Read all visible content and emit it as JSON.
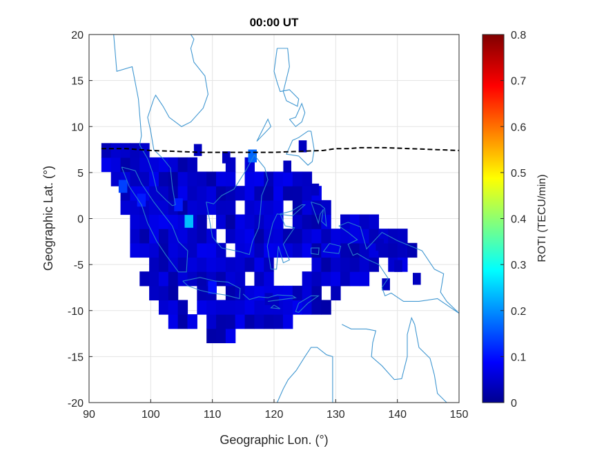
{
  "chart_data": {
    "type": "heatmap",
    "title": "00:00 UT",
    "xlabel": "Geographic Lon. (°)",
    "ylabel": "Geographic Lat. (°)",
    "xlim": [
      90,
      150
    ],
    "ylim": [
      -20,
      20
    ],
    "xticks": [
      "90",
      "100",
      "110",
      "120",
      "130",
      "140",
      "150"
    ],
    "yticks": [
      "20",
      "15",
      "10",
      "5",
      "0",
      "-5",
      "-10",
      "-15",
      "-20"
    ],
    "grid": true,
    "colorbar": {
      "label": "ROTI (TECU/min)",
      "range": [
        0,
        0.8
      ],
      "ticks": [
        "0",
        "0.1",
        "0.2",
        "0.3",
        "0.4",
        "0.5",
        "0.6",
        "0.7",
        "0.8"
      ],
      "colormap": "jet"
    },
    "magnetic_equator": {
      "style": "dashed",
      "color": "#000000",
      "points": [
        [
          92,
          7.6
        ],
        [
          96,
          7.6
        ],
        [
          100,
          7.4
        ],
        [
          104,
          7.3
        ],
        [
          108,
          7.2
        ],
        [
          112,
          7.2
        ],
        [
          116,
          7.2
        ],
        [
          120,
          7.2
        ],
        [
          124,
          7.3
        ],
        [
          128,
          7.4
        ],
        [
          130,
          7.6
        ],
        [
          132,
          7.6
        ],
        [
          134,
          7.7
        ],
        [
          138,
          7.7
        ],
        [
          142,
          7.6
        ],
        [
          146,
          7.5
        ],
        [
          150,
          7.4
        ]
      ]
    },
    "background_roti": 0.06,
    "highlight_cells": [
      {
        "lon": 116.5,
        "lat": 6.8,
        "roti": 0.18
      },
      {
        "lon": 106.2,
        "lat": -0.3,
        "roti": 0.25
      },
      {
        "lon": 95.5,
        "lat": 3.5,
        "roti": 0.15
      },
      {
        "lon": 98.5,
        "lat": 2.0,
        "roti": 0.12
      },
      {
        "lon": 104.5,
        "lat": 1.5,
        "roti": 0.12
      },
      {
        "lon": 110.0,
        "lat": -7.5,
        "roti": 0.11
      }
    ],
    "coastline_color": "#2b8ccc"
  }
}
